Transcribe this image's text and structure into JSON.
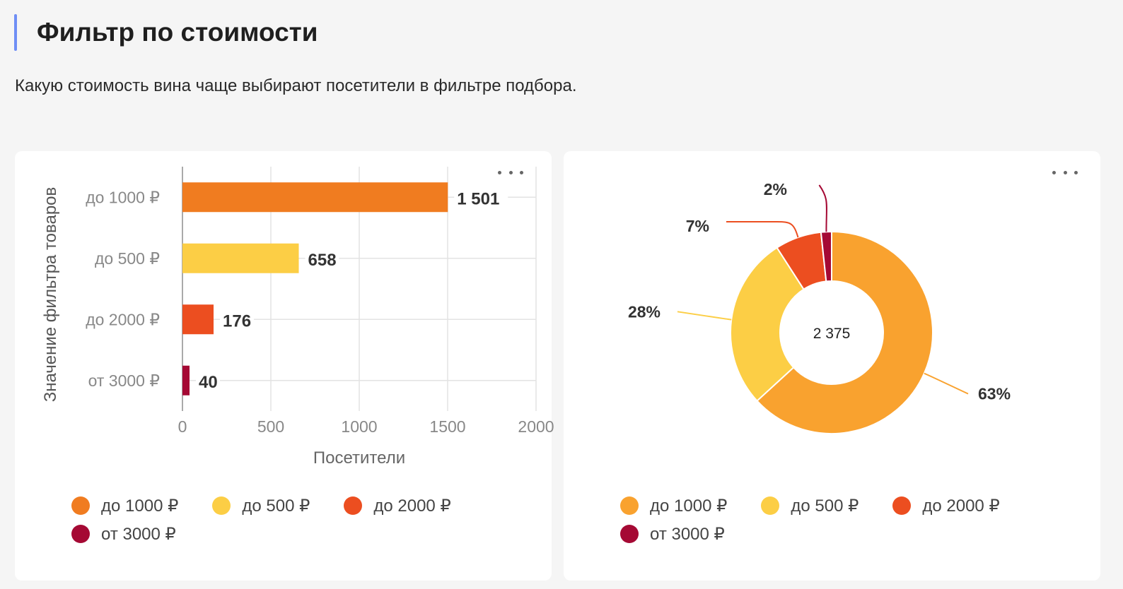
{
  "header": {
    "title": "Фильтр по стоимости",
    "subtitle": "Какую стоимость вина чаще выбирают посетители в фильтре подбора."
  },
  "bar_card": {
    "menu_icon": "more-horizontal-icon"
  },
  "donut_card": {
    "menu_icon": "more-horizontal-icon",
    "center_label": "2 375"
  },
  "colors": {
    "accent": "#6f8ef5",
    "bar": [
      "#f07c20",
      "#fcce45",
      "#ec4e20",
      "#a50934"
    ],
    "donut": [
      "#f9a22f",
      "#fcce45",
      "#ec4e20",
      "#a50934"
    ]
  },
  "chart_data": [
    {
      "type": "bar",
      "orientation": "horizontal",
      "title": "",
      "xlabel": "Посетители",
      "ylabel": "Значение фильтра товаров",
      "categories": [
        "до 1000 ₽",
        "до 500 ₽",
        "до 2000 ₽",
        "от 3000 ₽"
      ],
      "values": [
        1501,
        658,
        176,
        40
      ],
      "value_labels": [
        "1 501",
        "658",
        "176",
        "40"
      ],
      "xlim": [
        0,
        2000
      ],
      "xticks": [
        0,
        500,
        1000,
        1500,
        2000
      ],
      "xtick_labels": [
        "0",
        "500",
        "1000",
        "1500",
        "2000"
      ],
      "grid": true,
      "legend": [
        "до 1000 ₽",
        "до 500 ₽",
        "до 2000 ₽",
        "от 3000 ₽"
      ],
      "legend_position": "bottom"
    },
    {
      "type": "pie",
      "variant": "donut",
      "title": "",
      "categories": [
        "до 1000 ₽",
        "до 500 ₽",
        "до 2000 ₽",
        "от 3000 ₽"
      ],
      "values": [
        1501,
        658,
        176,
        40
      ],
      "percent_labels": [
        "63%",
        "28%",
        "7%",
        "2%"
      ],
      "total": 2375,
      "legend": [
        "до 1000 ₽",
        "до 500 ₽",
        "до 2000 ₽",
        "от 3000 ₽"
      ],
      "legend_position": "bottom"
    }
  ]
}
